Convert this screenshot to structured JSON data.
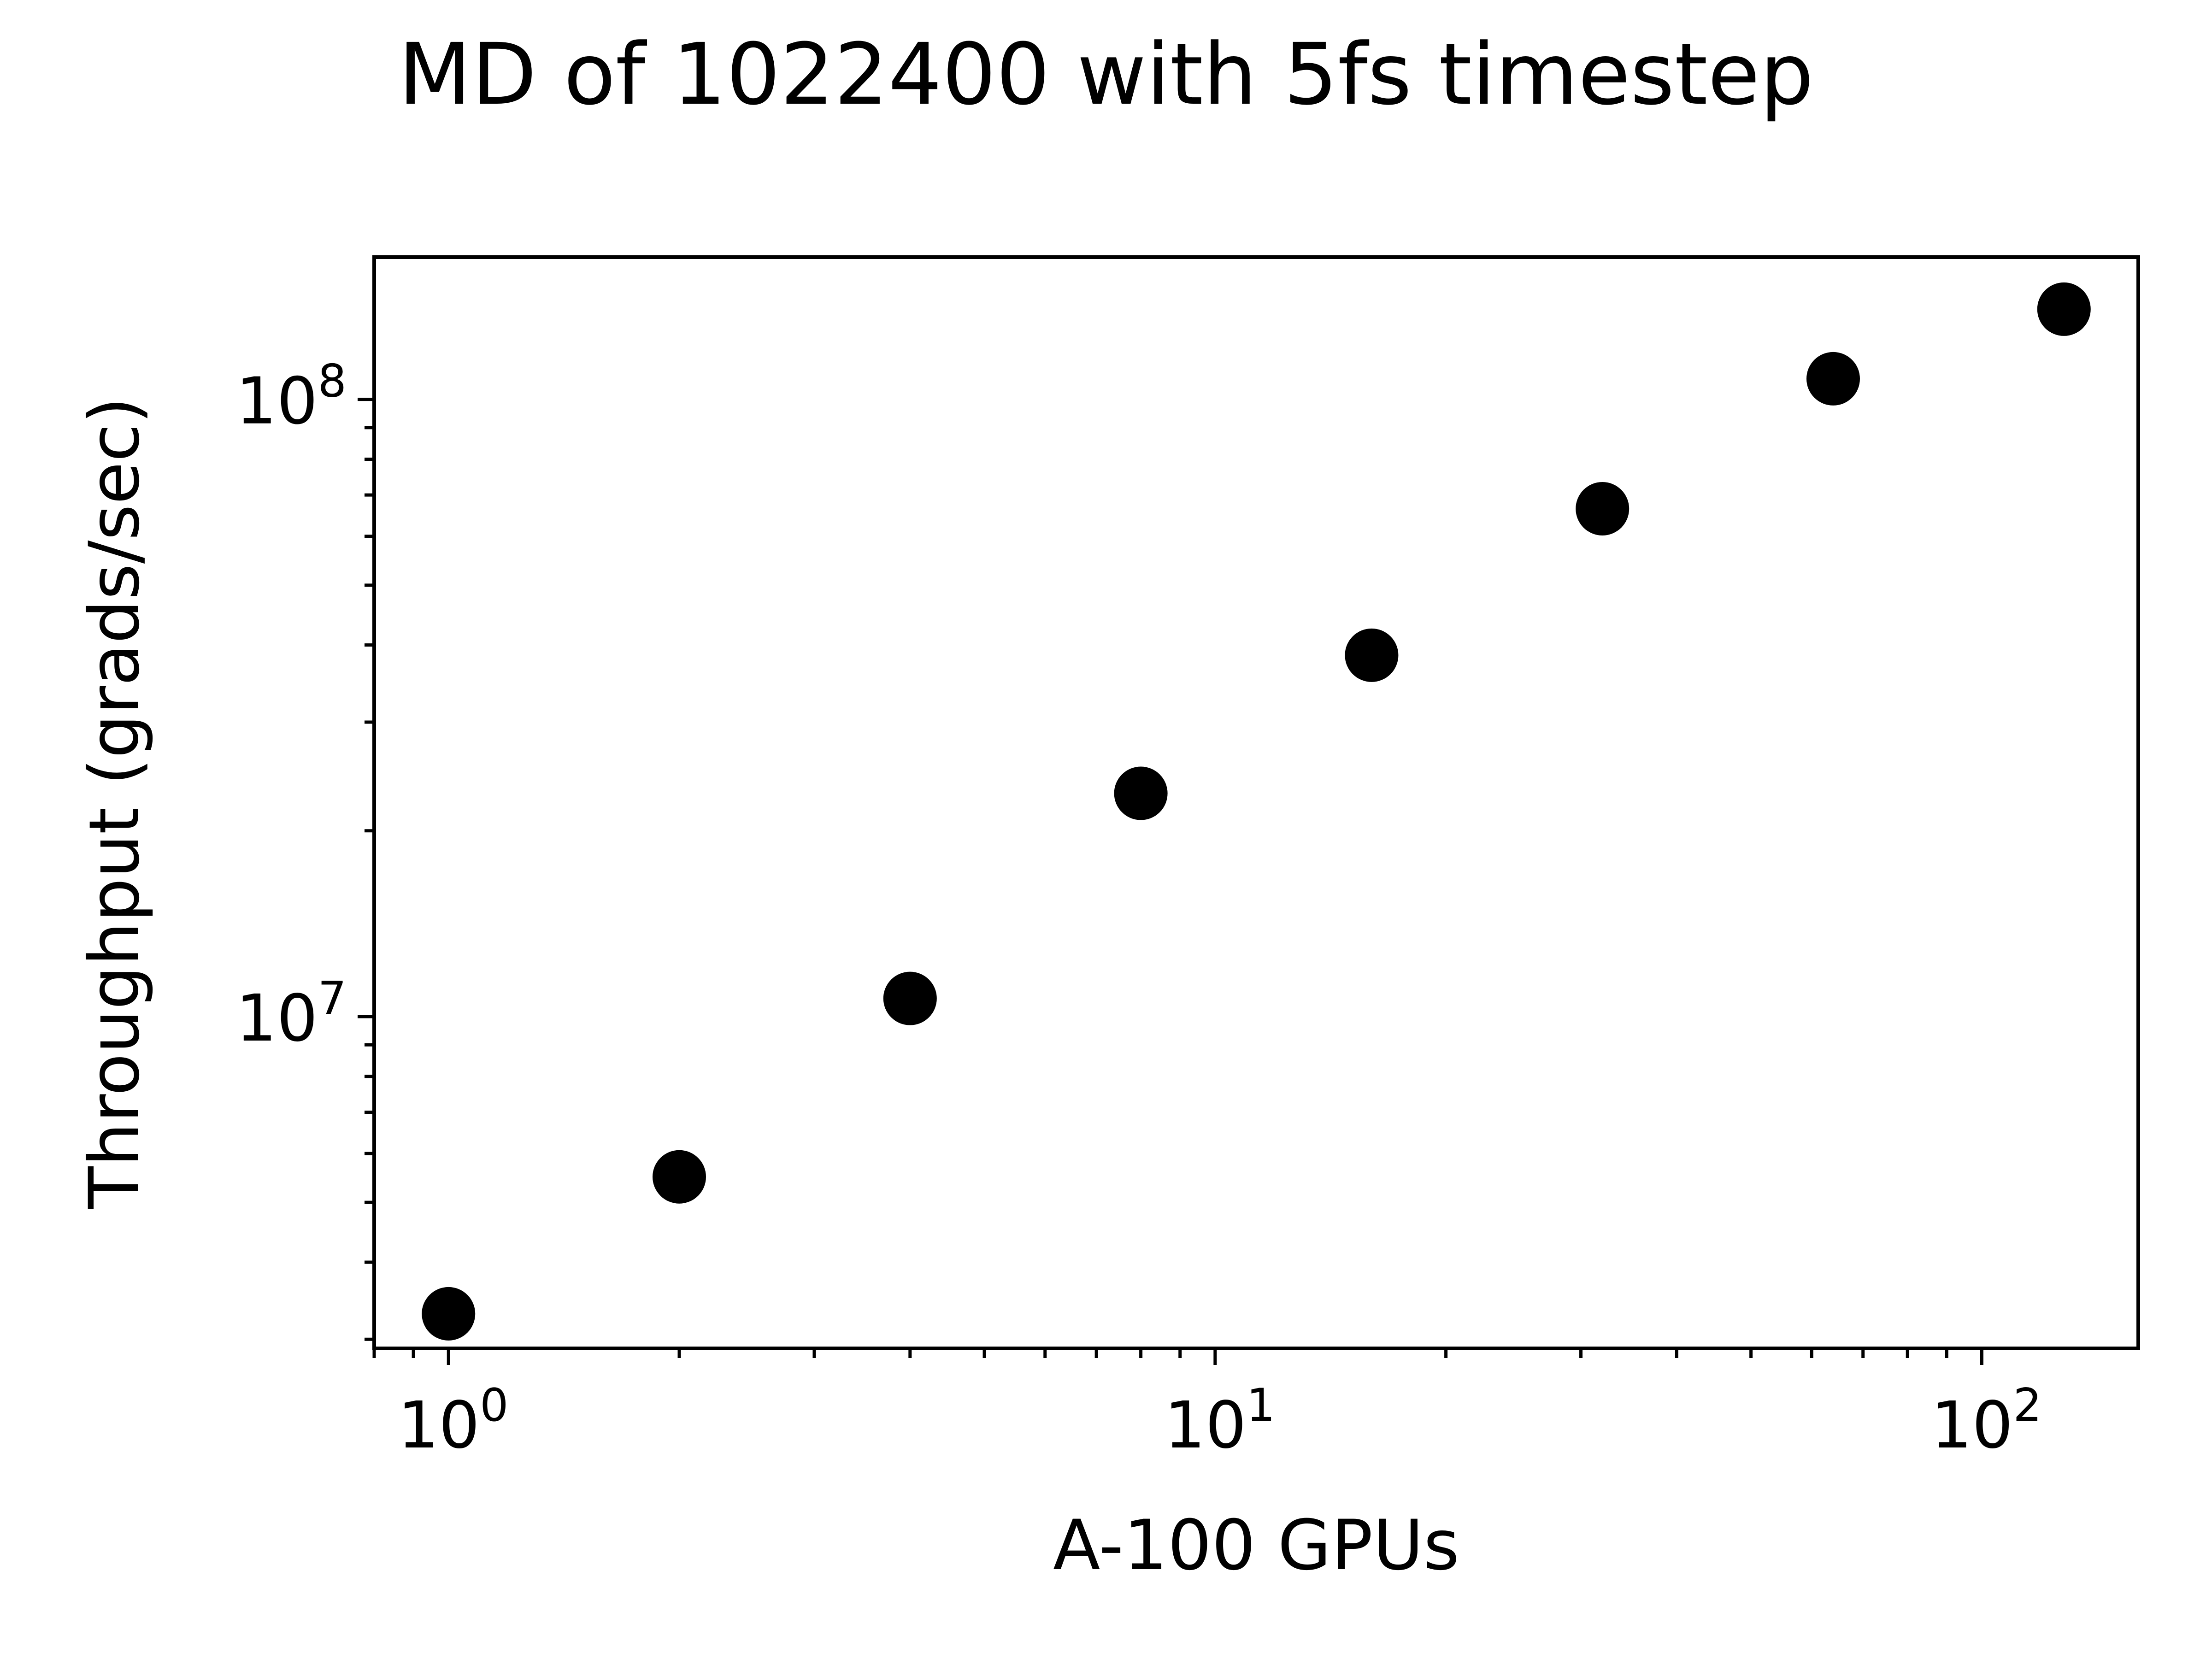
{
  "chart_data": {
    "type": "scatter",
    "title": "MD of 1022400 with 5fs timestep",
    "xlabel": "A-100 GPUs",
    "ylabel": "Throughput (grads/sec)",
    "x_scale": "log",
    "y_scale": "log",
    "xlim": [
      0.8,
      160
    ],
    "ylim": [
      2900000,
      170000000
    ],
    "grid": false,
    "x_major_ticks": [
      {
        "value": 1,
        "base": "10",
        "exp": "0"
      },
      {
        "value": 10,
        "base": "10",
        "exp": "1"
      },
      {
        "value": 100,
        "base": "10",
        "exp": "2"
      }
    ],
    "y_major_ticks": [
      {
        "value": 10000000,
        "base": "10",
        "exp": "7"
      },
      {
        "value": 100000000,
        "base": "10",
        "exp": "8"
      }
    ],
    "marker_color": "#000000",
    "points": [
      {
        "x": 1,
        "y": 3300000
      },
      {
        "x": 2,
        "y": 5500000
      },
      {
        "x": 4,
        "y": 10700000
      },
      {
        "x": 8,
        "y": 23000000
      },
      {
        "x": 16,
        "y": 38500000
      },
      {
        "x": 32,
        "y": 66500000
      },
      {
        "x": 64,
        "y": 108000000
      },
      {
        "x": 128,
        "y": 140000000
      }
    ]
  }
}
